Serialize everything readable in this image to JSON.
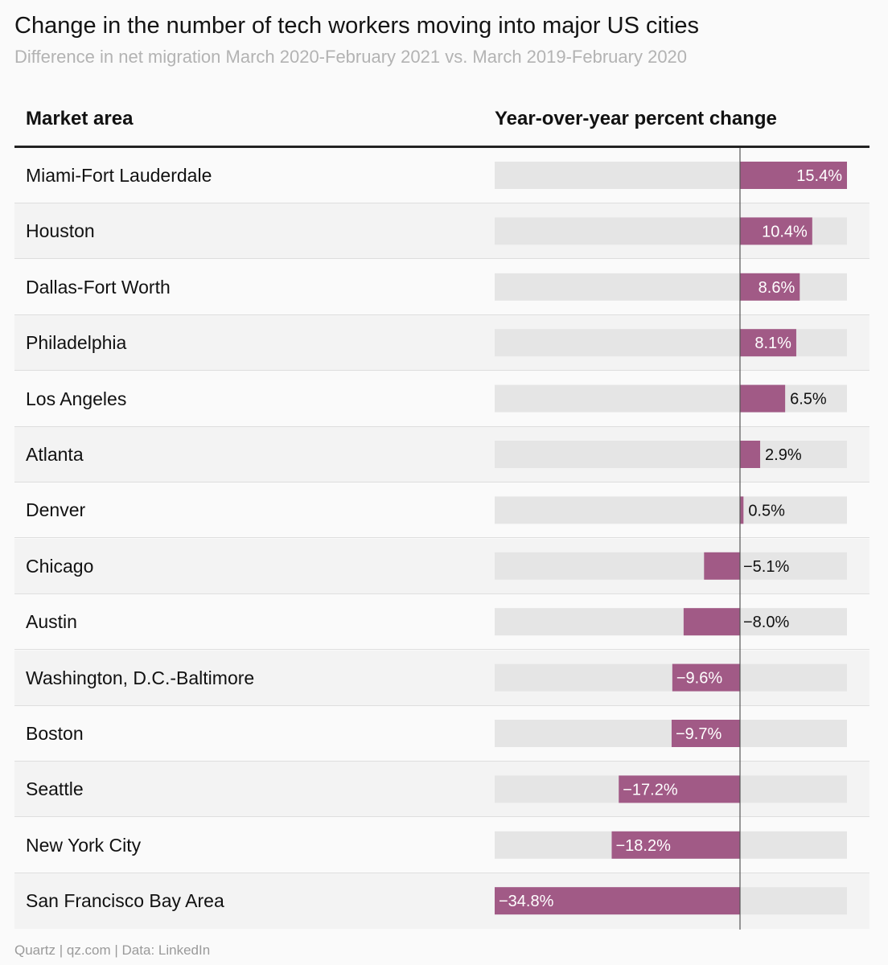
{
  "title": "Change in the number of tech workers moving into major US cities",
  "subtitle": "Difference in net migration March 2020-February 2021 vs. March 2019-February 2020",
  "columns": {
    "market": "Market area",
    "change": "Year-over-year percent change"
  },
  "footer": "Quartz | qz.com | Data: LinkedIn",
  "colors": {
    "bar": "#a15a86",
    "track": "#e5e5e5",
    "zero_line": "#555555",
    "label_inside": "#ffffff",
    "label_outside": "#111111"
  },
  "chart_data": {
    "type": "bar",
    "orientation": "horizontal",
    "title": "Change in the number of tech workers moving into major US cities",
    "subtitle": "Difference in net migration March 2020-February 2021 vs. March 2019-February 2020",
    "ylabel": "Market area",
    "xlabel": "Year-over-year percent change",
    "xlim": [
      -34.8,
      15.4
    ],
    "grid": false,
    "categories": [
      "Miami-Fort Lauderdale",
      "Houston",
      "Dallas-Fort Worth",
      "Philadelphia",
      "Los Angeles",
      "Atlanta",
      "Denver",
      "Chicago",
      "Austin",
      "Washington, D.C.-Baltimore",
      "Boston",
      "Seattle",
      "New York City",
      "San Francisco Bay Area"
    ],
    "values": [
      15.4,
      10.4,
      8.6,
      8.1,
      6.5,
      2.9,
      0.5,
      -5.1,
      -8.0,
      -9.6,
      -9.7,
      -17.2,
      -18.2,
      -34.8
    ],
    "value_labels": [
      "15.4%",
      "10.4%",
      "8.6%",
      "8.1%",
      "6.5%",
      "2.9%",
      "0.5%",
      "−5.1%",
      "−8.0%",
      "−9.6%",
      "−9.7%",
      "−17.2%",
      "−18.2%",
      "−34.8%"
    ],
    "label_inside": [
      true,
      true,
      true,
      true,
      false,
      false,
      false,
      false,
      false,
      true,
      true,
      true,
      true,
      true
    ]
  }
}
